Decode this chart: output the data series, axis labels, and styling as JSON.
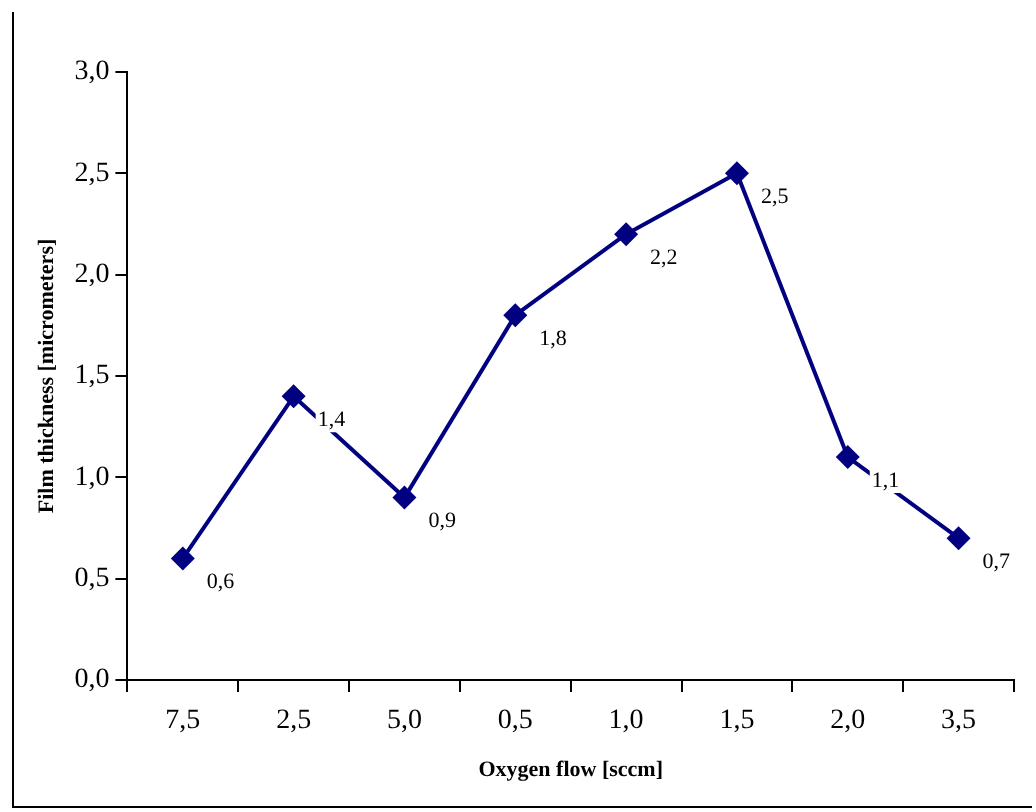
{
  "chart_data": {
    "type": "line",
    "xlabel": "Oxygen flow [sccm]",
    "ylabel": "Film thickness [micrometers]",
    "categories": [
      "7,5",
      "2,5",
      "5,0",
      "0,5",
      "1,0",
      "1,5",
      "2,0",
      "3,5"
    ],
    "series": [
      {
        "color": "#000080",
        "values": [
          0.6,
          1.4,
          0.9,
          1.8,
          2.2,
          2.5,
          1.1,
          0.7
        ],
        "value_labels": [
          "0,6",
          "1,4",
          "0,9",
          "1,8",
          "2,2",
          "2,5",
          "1,1",
          "0,7"
        ]
      }
    ],
    "ylim": [
      0,
      3
    ],
    "yticks": [
      {
        "value": 0,
        "label": "0,0"
      },
      {
        "value": 0.5,
        "label": "0,5"
      },
      {
        "value": 1,
        "label": "1,0"
      },
      {
        "value": 1.5,
        "label": "1,5"
      },
      {
        "value": 2,
        "label": "2,0"
      },
      {
        "value": 2.5,
        "label": "2,5"
      },
      {
        "value": 3,
        "label": "3,0"
      }
    ],
    "grid": false,
    "legend": false,
    "marker": "diamond",
    "line_style": "solid"
  }
}
